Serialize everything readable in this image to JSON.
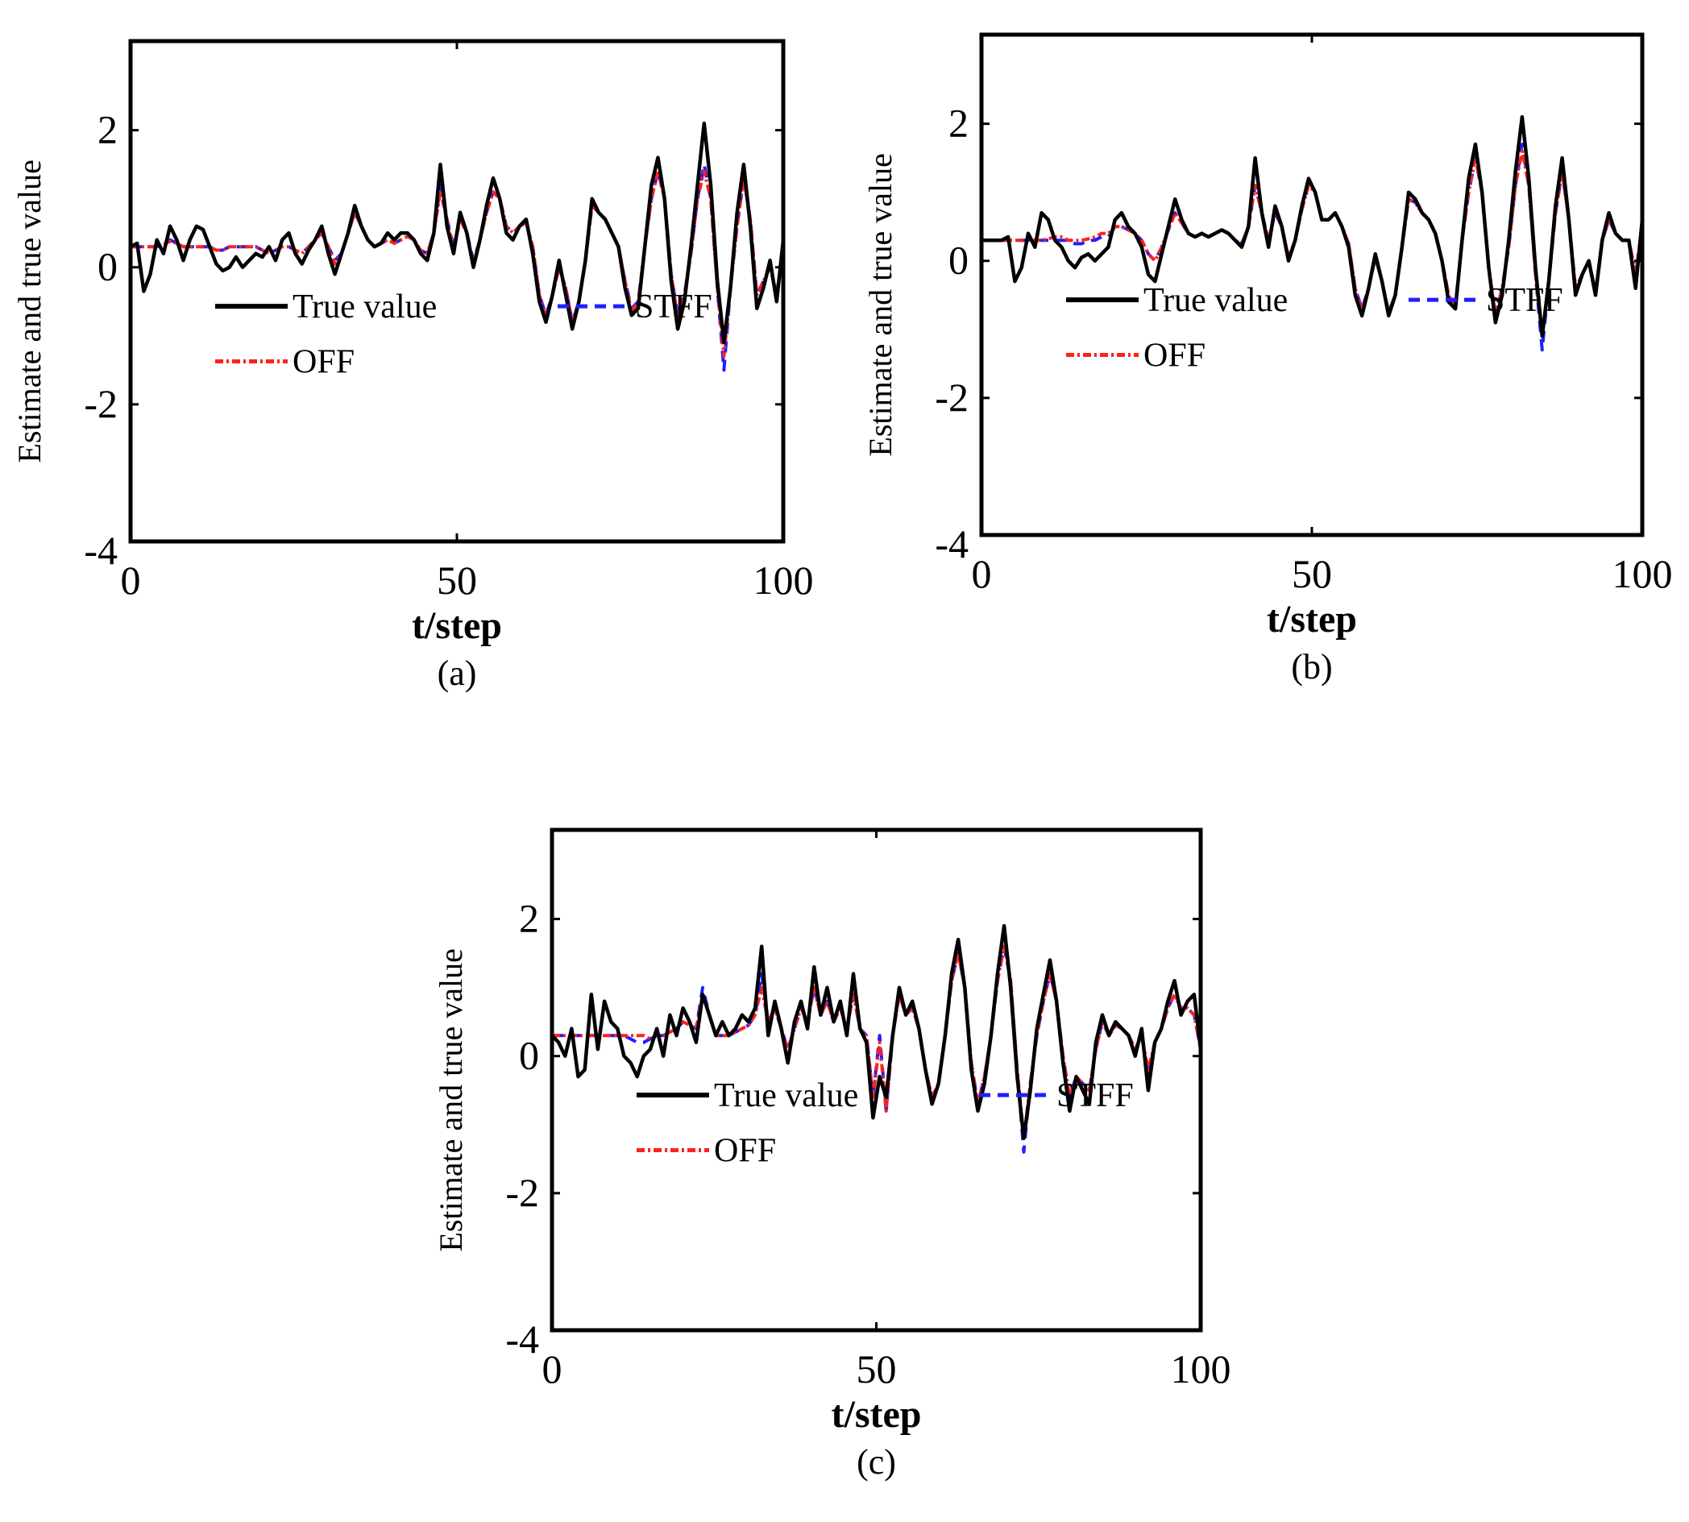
{
  "figure": {
    "series_styles": [
      {
        "name": "True value",
        "color": "#000000",
        "dash": "solid"
      },
      {
        "name": "STFF",
        "color": "#1f1fff",
        "dash": "dashed"
      },
      {
        "name": "OFF",
        "color": "#ff2020",
        "dash": "dashdot"
      }
    ]
  },
  "chart_data": [
    {
      "type": "line",
      "caption": "(a)",
      "xlabel": "t/step",
      "ylabel": "Estimate and true value",
      "xlim": [
        0,
        100
      ],
      "ylim": [
        -4,
        3.3
      ],
      "xticks": [
        "0",
        "50",
        "100"
      ],
      "yticks": [
        "-4",
        "-2",
        "0",
        "2"
      ],
      "grid": false,
      "legend": {
        "position": "lower-left",
        "entries": [
          "True value",
          "STFF",
          "OFF"
        ]
      },
      "series": [
        {
          "name": "True value",
          "values": [
            0.3,
            0.35,
            -0.35,
            -0.1,
            0.4,
            0.2,
            0.6,
            0.4,
            0.1,
            0.4,
            0.6,
            0.55,
            0.3,
            0.05,
            -0.05,
            0.0,
            0.15,
            0.0,
            0.1,
            0.2,
            0.15,
            0.3,
            0.1,
            0.4,
            0.5,
            0.2,
            0.05,
            0.25,
            0.4,
            0.6,
            0.2,
            -0.1,
            0.2,
            0.5,
            0.9,
            0.6,
            0.4,
            0.3,
            0.35,
            0.5,
            0.4,
            0.5,
            0.5,
            0.4,
            0.2,
            0.1,
            0.5,
            1.5,
            0.6,
            0.2,
            0.8,
            0.5,
            0.0,
            0.4,
            0.9,
            1.3,
            1.0,
            0.5,
            0.4,
            0.6,
            0.7,
            0.2,
            -0.5,
            -0.8,
            -0.4,
            0.1,
            -0.4,
            -0.9,
            -0.5,
            0.1,
            1.0,
            0.8,
            0.7,
            0.5,
            0.3,
            -0.3,
            -0.7,
            -0.6,
            0.3,
            1.2,
            1.6,
            1.0,
            -0.2,
            -0.9,
            -0.5,
            0.3,
            1.2,
            2.1,
            1.2,
            -0.2,
            -1.1,
            -0.3,
            0.8,
            1.5,
            0.6,
            -0.6,
            -0.3,
            0.1,
            -0.5,
            0.4
          ]
        },
        {
          "name": "STFF",
          "values": [
            0.3,
            0.3,
            0.3,
            0.3,
            0.3,
            0.35,
            0.4,
            0.35,
            0.3,
            0.3,
            0.3,
            0.3,
            0.3,
            0.25,
            0.25,
            0.3,
            0.3,
            0.3,
            0.3,
            0.3,
            0.25,
            0.2,
            0.25,
            0.3,
            0.3,
            0.25,
            0.2,
            0.3,
            0.4,
            0.5,
            0.3,
            0.1,
            0.2,
            0.5,
            0.8,
            0.6,
            0.4,
            0.3,
            0.35,
            0.4,
            0.35,
            0.4,
            0.45,
            0.4,
            0.25,
            0.2,
            0.5,
            1.2,
            0.7,
            0.3,
            0.7,
            0.5,
            0.1,
            0.4,
            0.8,
            1.1,
            1.0,
            0.6,
            0.5,
            0.6,
            0.65,
            0.3,
            -0.4,
            -0.7,
            -0.4,
            0.0,
            -0.3,
            -0.8,
            -0.5,
            0.1,
            0.9,
            0.8,
            0.7,
            0.5,
            0.3,
            -0.2,
            -0.6,
            -0.5,
            0.3,
            1.0,
            1.4,
            1.0,
            -0.1,
            -0.7,
            -0.4,
            0.2,
            1.0,
            1.5,
            1.0,
            -0.3,
            -1.5,
            -0.3,
            0.6,
            1.3,
            0.7,
            -0.4,
            -0.2,
            0.0,
            -0.4,
            0.3
          ]
        },
        {
          "name": "OFF",
          "values": [
            0.3,
            0.3,
            0.3,
            0.3,
            0.3,
            0.33,
            0.38,
            0.35,
            0.3,
            0.3,
            0.3,
            0.3,
            0.3,
            0.25,
            0.25,
            0.3,
            0.3,
            0.3,
            0.3,
            0.3,
            0.25,
            0.2,
            0.25,
            0.3,
            0.3,
            0.25,
            0.2,
            0.3,
            0.4,
            0.5,
            0.3,
            0.05,
            0.2,
            0.5,
            0.8,
            0.6,
            0.4,
            0.3,
            0.35,
            0.4,
            0.35,
            0.4,
            0.45,
            0.4,
            0.25,
            0.2,
            0.5,
            1.1,
            0.7,
            0.25,
            0.7,
            0.5,
            0.05,
            0.4,
            0.8,
            1.1,
            1.0,
            0.6,
            0.5,
            0.6,
            0.65,
            0.3,
            -0.4,
            -0.75,
            -0.4,
            0.0,
            -0.3,
            -0.8,
            -0.5,
            0.1,
            0.9,
            0.8,
            0.7,
            0.5,
            0.3,
            -0.2,
            -0.65,
            -0.5,
            0.3,
            1.0,
            1.4,
            1.0,
            -0.1,
            -0.75,
            -0.4,
            0.2,
            1.0,
            1.4,
            1.0,
            -0.3,
            -1.3,
            -0.3,
            0.6,
            1.3,
            0.7,
            -0.4,
            -0.2,
            0.0,
            -0.4,
            0.3
          ]
        }
      ]
    },
    {
      "type": "line",
      "caption": "(b)",
      "xlabel": "t/step",
      "ylabel": "Estimate and true value",
      "xlim": [
        0,
        100
      ],
      "ylim": [
        -4,
        3.3
      ],
      "xticks": [
        "0",
        "50",
        "100"
      ],
      "yticks": [
        "-4",
        "-2",
        "0",
        "2"
      ],
      "grid": false,
      "legend": {
        "position": "lower-left",
        "entries": [
          "True value",
          "STFF",
          "OFF"
        ]
      },
      "series": [
        {
          "name": "True value",
          "values": [
            0.3,
            0.3,
            0.3,
            0.3,
            0.35,
            -0.3,
            -0.1,
            0.4,
            0.2,
            0.7,
            0.6,
            0.3,
            0.2,
            0.0,
            -0.1,
            0.05,
            0.1,
            0.0,
            0.1,
            0.2,
            0.6,
            0.7,
            0.5,
            0.4,
            0.2,
            -0.2,
            -0.3,
            0.1,
            0.5,
            0.9,
            0.6,
            0.4,
            0.35,
            0.4,
            0.35,
            0.4,
            0.45,
            0.4,
            0.3,
            0.2,
            0.5,
            1.5,
            0.7,
            0.2,
            0.8,
            0.5,
            0.0,
            0.3,
            0.8,
            1.2,
            1.0,
            0.6,
            0.6,
            0.7,
            0.5,
            0.2,
            -0.5,
            -0.8,
            -0.4,
            0.1,
            -0.3,
            -0.8,
            -0.5,
            0.2,
            1.0,
            0.9,
            0.7,
            0.6,
            0.4,
            0.0,
            -0.6,
            -0.7,
            0.3,
            1.2,
            1.7,
            1.0,
            -0.1,
            -0.9,
            -0.5,
            0.3,
            1.3,
            2.1,
            1.2,
            -0.1,
            -1.1,
            -0.3,
            0.8,
            1.5,
            0.6,
            -0.5,
            -0.2,
            0.0,
            -0.5,
            0.3,
            0.7,
            0.4,
            0.3,
            0.3,
            -0.4,
            0.6
          ]
        },
        {
          "name": "STFF",
          "values": [
            0.3,
            0.3,
            0.3,
            0.3,
            0.3,
            0.3,
            0.3,
            0.3,
            0.3,
            0.3,
            0.3,
            0.3,
            0.3,
            0.3,
            0.25,
            0.25,
            0.3,
            0.3,
            0.35,
            0.35,
            0.5,
            0.5,
            0.45,
            0.4,
            0.3,
            0.1,
            0.0,
            0.2,
            0.45,
            0.7,
            0.55,
            0.4,
            0.35,
            0.4,
            0.35,
            0.4,
            0.45,
            0.4,
            0.3,
            0.25,
            0.5,
            1.1,
            0.7,
            0.3,
            0.7,
            0.5,
            0.05,
            0.3,
            0.75,
            1.1,
            1.0,
            0.6,
            0.6,
            0.7,
            0.5,
            0.25,
            -0.4,
            -0.7,
            -0.4,
            0.05,
            -0.3,
            -0.75,
            -0.5,
            0.2,
            0.9,
            0.85,
            0.7,
            0.6,
            0.4,
            0.0,
            -0.5,
            -0.65,
            0.3,
            1.0,
            1.5,
            1.0,
            -0.1,
            -0.8,
            -0.4,
            0.2,
            1.1,
            1.7,
            1.1,
            -0.2,
            -1.3,
            -0.3,
            0.7,
            1.3,
            0.6,
            -0.4,
            -0.2,
            0.0,
            -0.45,
            0.3,
            0.6,
            0.4,
            0.3,
            0.3,
            -0.2,
            0.5
          ]
        },
        {
          "name": "OFF",
          "values": [
            0.3,
            0.3,
            0.3,
            0.3,
            0.3,
            0.3,
            0.3,
            0.3,
            0.3,
            0.3,
            0.32,
            0.35,
            0.35,
            0.3,
            0.3,
            0.3,
            0.32,
            0.35,
            0.4,
            0.4,
            0.5,
            0.5,
            0.45,
            0.4,
            0.3,
            0.1,
            0.0,
            0.2,
            0.45,
            0.7,
            0.55,
            0.4,
            0.35,
            0.4,
            0.35,
            0.4,
            0.45,
            0.4,
            0.3,
            0.25,
            0.5,
            1.1,
            0.7,
            0.3,
            0.7,
            0.5,
            0.05,
            0.3,
            0.75,
            1.1,
            1.0,
            0.6,
            0.6,
            0.7,
            0.5,
            0.25,
            -0.4,
            -0.75,
            -0.4,
            0.05,
            -0.3,
            -0.75,
            -0.5,
            0.2,
            0.9,
            0.85,
            0.7,
            0.6,
            0.4,
            0.0,
            -0.5,
            -0.7,
            0.3,
            1.0,
            1.5,
            1.0,
            -0.1,
            -0.8,
            -0.4,
            0.2,
            1.1,
            1.6,
            1.1,
            -0.2,
            -1.1,
            -0.3,
            0.7,
            1.3,
            0.6,
            -0.4,
            -0.2,
            0.0,
            -0.45,
            0.3,
            0.6,
            0.4,
            0.3,
            0.3,
            -0.2,
            0.5
          ]
        }
      ]
    },
    {
      "type": "line",
      "caption": "(c)",
      "xlabel": "t/step",
      "ylabel": "Estimate and true value",
      "xlim": [
        0,
        100
      ],
      "ylim": [
        -4,
        3.3
      ],
      "xticks": [
        "0",
        "50",
        "100"
      ],
      "yticks": [
        "-4",
        "-2",
        "0",
        "2"
      ],
      "grid": false,
      "legend": {
        "position": "lower-left",
        "entries": [
          "True value",
          "STFF",
          "OFF"
        ]
      },
      "series": [
        {
          "name": "True value",
          "values": [
            0.3,
            0.2,
            0.0,
            0.4,
            -0.3,
            -0.2,
            0.9,
            0.1,
            0.8,
            0.5,
            0.4,
            0.0,
            -0.1,
            -0.3,
            0.0,
            0.1,
            0.4,
            0.0,
            0.6,
            0.3,
            0.7,
            0.5,
            0.2,
            0.9,
            0.6,
            0.3,
            0.5,
            0.3,
            0.4,
            0.6,
            0.5,
            0.7,
            1.6,
            0.3,
            0.8,
            0.4,
            -0.1,
            0.5,
            0.8,
            0.4,
            1.3,
            0.6,
            1.0,
            0.5,
            0.8,
            0.3,
            1.2,
            0.4,
            0.2,
            -0.9,
            -0.3,
            -0.6,
            0.3,
            1.0,
            0.6,
            0.8,
            0.4,
            -0.2,
            -0.7,
            -0.4,
            0.3,
            1.2,
            1.7,
            1.0,
            -0.2,
            -0.8,
            -0.4,
            0.3,
            1.2,
            1.9,
            1.0,
            -0.3,
            -1.2,
            -0.5,
            0.4,
            0.9,
            1.4,
            0.8,
            -0.1,
            -0.8,
            -0.3,
            -0.5,
            -0.7,
            0.2,
            0.6,
            0.3,
            0.5,
            0.4,
            0.3,
            0.0,
            0.4,
            -0.5,
            0.2,
            0.4,
            0.8,
            1.1,
            0.6,
            0.8,
            0.9,
            0.1
          ]
        },
        {
          "name": "STFF",
          "values": [
            0.3,
            0.3,
            0.3,
            0.3,
            0.3,
            0.3,
            0.3,
            0.3,
            0.3,
            0.3,
            0.3,
            0.3,
            0.25,
            0.2,
            0.2,
            0.25,
            0.3,
            0.3,
            0.35,
            0.4,
            0.5,
            0.45,
            0.4,
            1.0,
            0.6,
            0.3,
            0.3,
            0.3,
            0.35,
            0.4,
            0.45,
            0.6,
            1.2,
            0.5,
            0.7,
            0.4,
            0.1,
            0.4,
            0.7,
            0.5,
            1.0,
            0.6,
            0.8,
            0.5,
            0.7,
            0.4,
            0.9,
            0.4,
            0.3,
            -0.6,
            0.3,
            -0.8,
            0.3,
            0.9,
            0.6,
            0.7,
            0.4,
            -0.2,
            -0.6,
            -0.4,
            0.3,
            1.1,
            1.5,
            1.0,
            -0.1,
            -0.7,
            -0.3,
            0.3,
            1.1,
            1.6,
            1.1,
            -0.2,
            -1.4,
            -0.4,
            0.3,
            0.8,
            1.2,
            0.8,
            0.0,
            -0.6,
            -0.3,
            -0.4,
            -0.5,
            0.1,
            0.5,
            0.3,
            0.45,
            0.4,
            0.3,
            0.1,
            0.3,
            -0.3,
            0.2,
            0.4,
            0.7,
            0.9,
            0.7,
            0.7,
            0.6,
            0.1
          ]
        },
        {
          "name": "OFF",
          "values": [
            0.3,
            0.3,
            0.3,
            0.3,
            0.3,
            0.3,
            0.3,
            0.3,
            0.3,
            0.3,
            0.3,
            0.3,
            0.3,
            0.3,
            0.3,
            0.25,
            0.3,
            0.3,
            0.35,
            0.4,
            0.5,
            0.45,
            0.4,
            0.9,
            0.6,
            0.3,
            0.3,
            0.3,
            0.35,
            0.4,
            0.45,
            0.6,
            1.0,
            0.5,
            0.7,
            0.4,
            0.1,
            0.4,
            0.7,
            0.5,
            1.0,
            0.6,
            0.8,
            0.5,
            0.7,
            0.4,
            0.9,
            0.4,
            0.3,
            -0.6,
            0.2,
            -0.8,
            0.3,
            0.9,
            0.6,
            0.7,
            0.4,
            -0.2,
            -0.6,
            -0.4,
            0.3,
            1.1,
            1.5,
            1.0,
            -0.1,
            -0.7,
            -0.3,
            0.3,
            1.1,
            1.6,
            1.1,
            -0.2,
            -1.2,
            -0.4,
            0.3,
            0.8,
            1.2,
            0.8,
            0.0,
            -0.6,
            -0.3,
            -0.4,
            -0.5,
            0.1,
            0.5,
            0.3,
            0.45,
            0.4,
            0.3,
            0.1,
            0.3,
            -0.2,
            0.2,
            0.4,
            0.7,
            0.9,
            0.7,
            0.7,
            0.6,
            0.1
          ]
        }
      ]
    }
  ]
}
